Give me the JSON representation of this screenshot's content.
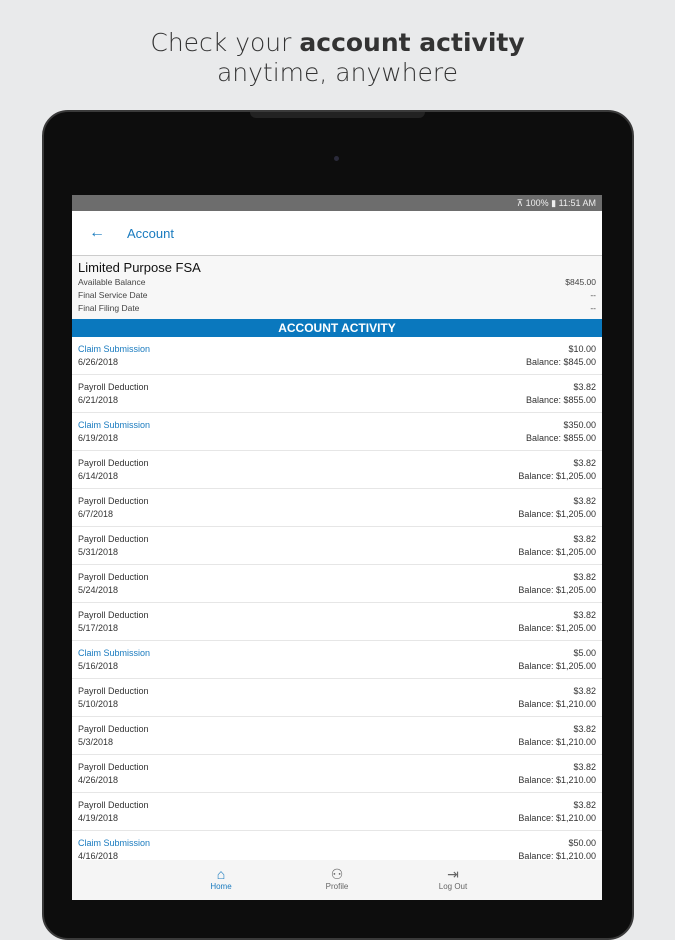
{
  "hero": {
    "line1_pre": "Check your ",
    "line1_bold": "account activity",
    "line2": "anytime, anywhere"
  },
  "status_bar": {
    "text": "⊼ 100% ▮ 11:51 AM"
  },
  "app_bar": {
    "title": "Account",
    "back_icon": "arrow-left-icon"
  },
  "account": {
    "name": "Limited Purpose FSA",
    "fields": [
      {
        "label": "Available Balance",
        "value": "$845.00"
      },
      {
        "label": "Final Service Date",
        "value": "--"
      },
      {
        "label": "Final Filing Date",
        "value": "--"
      }
    ]
  },
  "banner": "ACCOUNT ACTIVITY",
  "transactions": [
    {
      "type": "Claim Submission",
      "date": "6/26/2018",
      "amount": "$10.00",
      "balance": "Balance: $845.00",
      "claim": true
    },
    {
      "type": "Payroll Deduction",
      "date": "6/21/2018",
      "amount": "$3.82",
      "balance": "Balance: $855.00"
    },
    {
      "type": "Claim Submission",
      "date": "6/19/2018",
      "amount": "$350.00",
      "balance": "Balance: $855.00",
      "claim": true
    },
    {
      "type": "Payroll Deduction",
      "date": "6/14/2018",
      "amount": "$3.82",
      "balance": "Balance: $1,205.00"
    },
    {
      "type": "Payroll Deduction",
      "date": "6/7/2018",
      "amount": "$3.82",
      "balance": "Balance: $1,205.00"
    },
    {
      "type": "Payroll Deduction",
      "date": "5/31/2018",
      "amount": "$3.82",
      "balance": "Balance: $1,205.00"
    },
    {
      "type": "Payroll Deduction",
      "date": "5/24/2018",
      "amount": "$3.82",
      "balance": "Balance: $1,205.00"
    },
    {
      "type": "Payroll Deduction",
      "date": "5/17/2018",
      "amount": "$3.82",
      "balance": "Balance: $1,205.00"
    },
    {
      "type": "Claim Submission",
      "date": "5/16/2018",
      "amount": "$5.00",
      "balance": "Balance: $1,205.00",
      "claim": true
    },
    {
      "type": "Payroll Deduction",
      "date": "5/10/2018",
      "amount": "$3.82",
      "balance": "Balance: $1,210.00"
    },
    {
      "type": "Payroll Deduction",
      "date": "5/3/2018",
      "amount": "$3.82",
      "balance": "Balance: $1,210.00"
    },
    {
      "type": "Payroll Deduction",
      "date": "4/26/2018",
      "amount": "$3.82",
      "balance": "Balance: $1,210.00"
    },
    {
      "type": "Payroll Deduction",
      "date": "4/19/2018",
      "amount": "$3.82",
      "balance": "Balance: $1,210.00"
    },
    {
      "type": "Claim Submission",
      "date": "4/16/2018",
      "amount": "$50.00",
      "balance": "Balance: $1,210.00",
      "claim": true
    }
  ],
  "nav": [
    {
      "label": "Home",
      "icon": "home-icon",
      "active": true
    },
    {
      "label": "Profile",
      "icon": "person-icon"
    },
    {
      "label": "Log Out",
      "icon": "logout-icon"
    }
  ],
  "colors": {
    "accent": "#1a7bbf",
    "banner": "#0a78be"
  }
}
